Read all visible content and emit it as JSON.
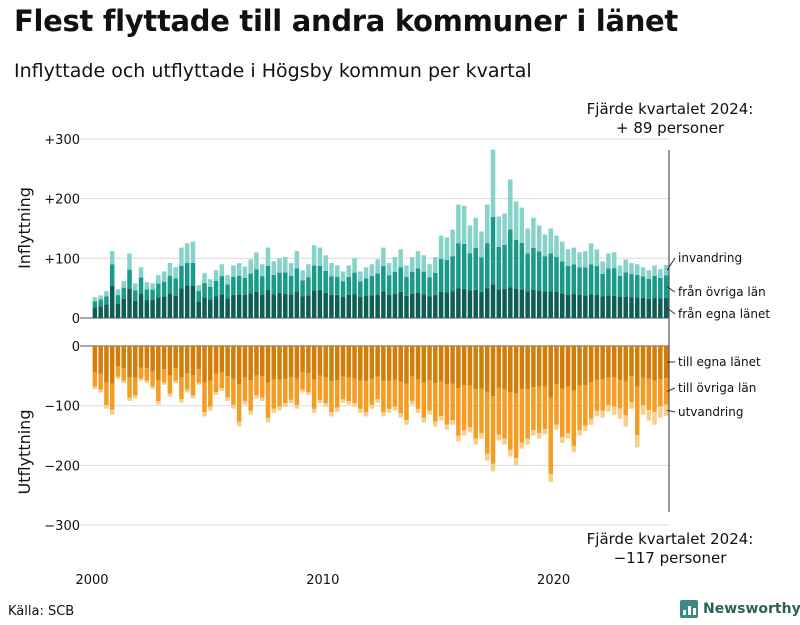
{
  "title": "Flest flyttade till andra kommuner i länet",
  "subtitle": "Inflyttade och utflyttade i Högsby kommun per kvartal",
  "annotation_top": {
    "line1": "Fjärde kvartalet 2024:",
    "line2": "+ 89 personer"
  },
  "annotation_bottom": {
    "line1": "Fjärde kvartalet 2024:",
    "line2": "−117 personer"
  },
  "source": "Källa: SCB",
  "logo": "Newsworthy",
  "colors": {
    "in_local": "#0e5e55",
    "in_other": "#1a9a88",
    "in_immigration": "#86d3c9",
    "out_local": "#d27e08",
    "out_other": "#f59c24",
    "out_emigration": "#f6cf8b",
    "grid": "#d9d9d9"
  },
  "chart_data": {
    "type": "bar",
    "stacked": true,
    "x_start_year": 2000,
    "quarters": 100,
    "x_ticks": [
      "2000",
      "2010",
      "2020"
    ],
    "ylabel_top": "Inflyttning",
    "ylabel_bottom": "Utflyttning",
    "ylim": [
      -300,
      300
    ],
    "y_ticks_top": [
      "+300",
      "+200",
      "+100",
      "0"
    ],
    "y_ticks_bottom": [
      "0",
      "−100",
      "−200",
      "−300"
    ],
    "series_labels_top": [
      "invandring",
      "från övriga län",
      "från egna länet"
    ],
    "series_labels_bottom": [
      "till egna länet",
      "till övriga län",
      "utvandring"
    ],
    "in_totals": [
      35,
      38,
      45,
      112,
      48,
      62,
      108,
      58,
      85,
      60,
      58,
      72,
      78,
      92,
      85,
      118,
      125,
      128,
      55,
      75,
      65,
      80,
      90,
      72,
      88,
      92,
      86,
      98,
      110,
      90,
      118,
      95,
      100,
      102,
      92,
      112,
      80,
      90,
      122,
      118,
      105,
      92,
      88,
      78,
      88,
      100,
      78,
      85,
      90,
      98,
      118,
      92,
      102,
      115,
      88,
      102,
      112,
      105,
      90,
      102,
      138,
      135,
      148,
      190,
      188,
      155,
      168,
      145,
      190,
      282,
      170,
      175,
      232,
      195,
      185,
      150,
      168,
      155,
      140,
      150,
      138,
      128,
      115,
      118,
      110,
      112,
      125,
      115,
      95,
      108,
      110,
      88,
      98,
      92,
      90,
      85,
      80,
      88,
      82,
      89
    ],
    "in_local_frac": [
      0.5,
      0.52,
      0.5,
      0.48,
      0.5,
      0.52,
      0.45,
      0.5,
      0.48,
      0.5,
      0.52,
      0.48,
      0.46,
      0.45,
      0.44,
      0.42,
      0.44,
      0.42,
      0.5,
      0.46,
      0.48,
      0.45,
      0.44,
      0.46,
      0.44,
      0.43,
      0.45,
      0.42,
      0.4,
      0.44,
      0.4,
      0.42,
      0.42,
      0.4,
      0.43,
      0.4,
      0.45,
      0.42,
      0.38,
      0.4,
      0.4,
      0.42,
      0.44,
      0.45,
      0.44,
      0.4,
      0.45,
      0.44,
      0.42,
      0.4,
      0.38,
      0.42,
      0.4,
      0.38,
      0.42,
      0.4,
      0.38,
      0.38,
      0.4,
      0.38,
      0.32,
      0.32,
      0.3,
      0.26,
      0.26,
      0.3,
      0.28,
      0.3,
      0.26,
      0.2,
      0.28,
      0.28,
      0.22,
      0.25,
      0.26,
      0.3,
      0.28,
      0.3,
      0.32,
      0.3,
      0.32,
      0.32,
      0.34,
      0.34,
      0.35,
      0.34,
      0.32,
      0.34,
      0.38,
      0.35,
      0.34,
      0.4,
      0.36,
      0.38,
      0.38,
      0.4,
      0.4,
      0.38,
      0.4,
      0.38
    ],
    "in_other_frac": [
      0.3,
      0.3,
      0.3,
      0.32,
      0.3,
      0.3,
      0.3,
      0.3,
      0.32,
      0.3,
      0.3,
      0.32,
      0.32,
      0.32,
      0.34,
      0.32,
      0.3,
      0.3,
      0.32,
      0.32,
      0.32,
      0.33,
      0.34,
      0.32,
      0.34,
      0.34,
      0.33,
      0.34,
      0.34,
      0.34,
      0.34,
      0.34,
      0.34,
      0.35,
      0.34,
      0.34,
      0.34,
      0.34,
      0.34,
      0.34,
      0.35,
      0.34,
      0.34,
      0.34,
      0.34,
      0.36,
      0.34,
      0.34,
      0.36,
      0.36,
      0.36,
      0.36,
      0.36,
      0.36,
      0.36,
      0.36,
      0.36,
      0.36,
      0.36,
      0.36,
      0.4,
      0.4,
      0.4,
      0.4,
      0.4,
      0.4,
      0.42,
      0.4,
      0.4,
      0.4,
      0.42,
      0.42,
      0.42,
      0.42,
      0.42,
      0.42,
      0.42,
      0.42,
      0.42,
      0.42,
      0.42,
      0.42,
      0.42,
      0.42,
      0.42,
      0.42,
      0.4,
      0.42,
      0.4,
      0.42,
      0.42,
      0.4,
      0.42,
      0.42,
      0.42,
      0.42,
      0.42,
      0.42,
      0.42,
      0.42
    ],
    "out_totals": [
      72,
      78,
      105,
      115,
      55,
      62,
      92,
      88,
      58,
      62,
      72,
      98,
      65,
      85,
      62,
      95,
      78,
      88,
      65,
      118,
      108,
      82,
      75,
      92,
      105,
      135,
      98,
      115,
      88,
      92,
      128,
      112,
      108,
      102,
      96,
      105,
      78,
      82,
      112,
      96,
      102,
      118,
      110,
      95,
      98,
      102,
      112,
      118,
      105,
      95,
      118,
      112,
      108,
      120,
      132,
      98,
      112,
      128,
      115,
      135,
      125,
      140,
      132,
      160,
      150,
      145,
      165,
      155,
      192,
      210,
      158,
      165,
      185,
      200,
      172,
      165,
      150,
      155,
      148,
      228,
      140,
      162,
      155,
      178,
      150,
      142,
      132,
      118,
      120,
      110,
      115,
      122,
      135,
      105,
      170,
      115,
      125,
      132,
      120,
      117
    ],
    "out_local_frac": [
      0.62,
      0.6,
      0.58,
      0.55,
      0.62,
      0.6,
      0.58,
      0.6,
      0.62,
      0.6,
      0.6,
      0.58,
      0.6,
      0.58,
      0.6,
      0.56,
      0.58,
      0.56,
      0.6,
      0.52,
      0.54,
      0.56,
      0.58,
      0.55,
      0.52,
      0.48,
      0.54,
      0.5,
      0.56,
      0.55,
      0.48,
      0.5,
      0.52,
      0.54,
      0.54,
      0.52,
      0.56,
      0.56,
      0.5,
      0.52,
      0.52,
      0.5,
      0.52,
      0.54,
      0.54,
      0.54,
      0.52,
      0.5,
      0.52,
      0.54,
      0.5,
      0.52,
      0.52,
      0.5,
      0.48,
      0.52,
      0.5,
      0.48,
      0.5,
      0.46,
      0.48,
      0.46,
      0.48,
      0.44,
      0.44,
      0.46,
      0.44,
      0.46,
      0.4,
      0.4,
      0.44,
      0.44,
      0.42,
      0.4,
      0.42,
      0.44,
      0.46,
      0.44,
      0.46,
      0.38,
      0.46,
      0.44,
      0.44,
      0.42,
      0.44,
      0.46,
      0.46,
      0.48,
      0.46,
      0.48,
      0.46,
      0.46,
      0.44,
      0.48,
      0.4,
      0.46,
      0.44,
      0.44,
      0.46,
      0.46
    ],
    "out_other_frac": [
      0.32,
      0.34,
      0.36,
      0.38,
      0.32,
      0.34,
      0.36,
      0.34,
      0.32,
      0.34,
      0.34,
      0.36,
      0.34,
      0.36,
      0.34,
      0.38,
      0.36,
      0.38,
      0.34,
      0.42,
      0.4,
      0.38,
      0.36,
      0.39,
      0.42,
      0.46,
      0.4,
      0.44,
      0.38,
      0.39,
      0.46,
      0.44,
      0.42,
      0.4,
      0.4,
      0.42,
      0.38,
      0.38,
      0.44,
      0.42,
      0.42,
      0.44,
      0.42,
      0.4,
      0.4,
      0.4,
      0.42,
      0.44,
      0.42,
      0.4,
      0.44,
      0.42,
      0.42,
      0.44,
      0.46,
      0.42,
      0.44,
      0.46,
      0.44,
      0.48,
      0.46,
      0.48,
      0.46,
      0.5,
      0.5,
      0.48,
      0.5,
      0.48,
      0.54,
      0.54,
      0.5,
      0.5,
      0.52,
      0.54,
      0.52,
      0.5,
      0.48,
      0.5,
      0.48,
      0.56,
      0.48,
      0.5,
      0.5,
      0.52,
      0.5,
      0.48,
      0.46,
      0.44,
      0.44,
      0.42,
      0.42,
      0.4,
      0.42,
      0.42,
      0.48,
      0.4,
      0.42,
      0.4,
      0.38,
      0.38
    ]
  }
}
